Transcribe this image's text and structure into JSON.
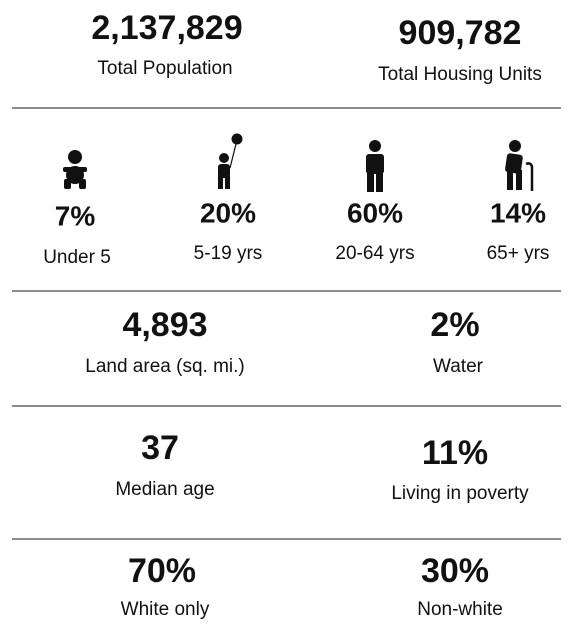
{
  "totals": [
    {
      "value": "2,137,829",
      "label": "Total Population"
    },
    {
      "value": "909,782",
      "label": "Total Housing Units"
    }
  ],
  "age_groups": [
    {
      "value": "7%",
      "label": "Under 5"
    },
    {
      "value": "20%",
      "label": "5-19 yrs"
    },
    {
      "value": "60%",
      "label": "20-64 yrs"
    },
    {
      "value": "14%",
      "label": "65+ yrs"
    }
  ],
  "geography": [
    {
      "value": "4,893",
      "label": "Land area (sq. mi.)"
    },
    {
      "value": "2%",
      "label": "Water"
    }
  ],
  "demographics": [
    {
      "value": "37",
      "label": "Median age"
    },
    {
      "value": "11%",
      "label": "Living in poverty"
    }
  ],
  "race": [
    {
      "value": "70%",
      "label": "White only"
    },
    {
      "value": "30%",
      "label": "Non-white"
    }
  ]
}
